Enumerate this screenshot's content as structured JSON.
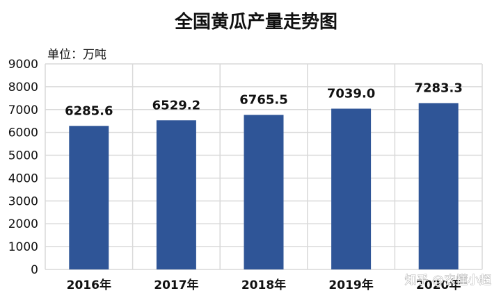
{
  "chart_data": {
    "type": "bar",
    "title": "全国黄瓜产量走势图",
    "unit_label": "单位：万吨",
    "categories": [
      "2016年",
      "2017年",
      "2018年",
      "2019年",
      "2020年"
    ],
    "values": [
      6285.6,
      6529.2,
      6765.5,
      7039.0,
      7283.3
    ],
    "value_labels": [
      "6285.6",
      "6529.2",
      "6765.5",
      "7039.0",
      "7283.3"
    ],
    "ylim": [
      0,
      9000
    ],
    "yticks": [
      "0",
      "1000",
      "2000",
      "3000",
      "4000",
      "5000",
      "6000",
      "7000",
      "8000",
      "9000"
    ],
    "grid": true,
    "legend": "none",
    "bar_color": "#2f5597"
  },
  "watermark": "知乎 @农懂小超"
}
